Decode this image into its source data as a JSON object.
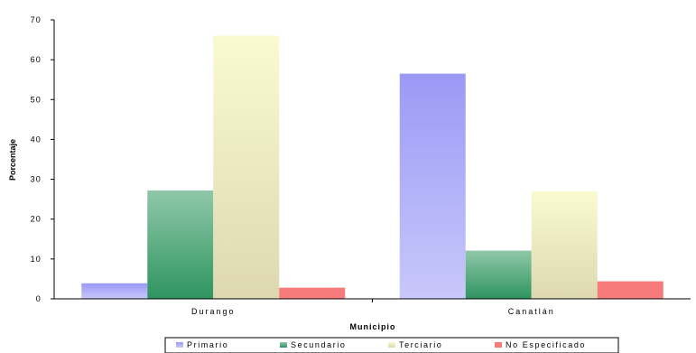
{
  "chart_data": {
    "type": "bar",
    "title": "",
    "xlabel": "Municipio",
    "ylabel": "Porcentaje",
    "categories": [
      "Durango",
      "Canatlán"
    ],
    "series": [
      {
        "name": "Primario",
        "values": [
          3.9,
          56.5
        ],
        "color": "#9a9af6"
      },
      {
        "name": "Secundario",
        "values": [
          27.2,
          12.1
        ],
        "color": "#3a9a6a"
      },
      {
        "name": "Terciario",
        "values": [
          66.0,
          27.0
        ],
        "color": "#f2f0c0"
      },
      {
        "name": "No Especificado",
        "values": [
          2.8,
          4.4
        ],
        "color": "#f77b7b"
      }
    ],
    "ylim": [
      0,
      70
    ],
    "yticks": [
      0,
      10,
      20,
      30,
      40,
      50,
      60,
      70
    ],
    "grid": false,
    "legend_position": "bottom"
  }
}
